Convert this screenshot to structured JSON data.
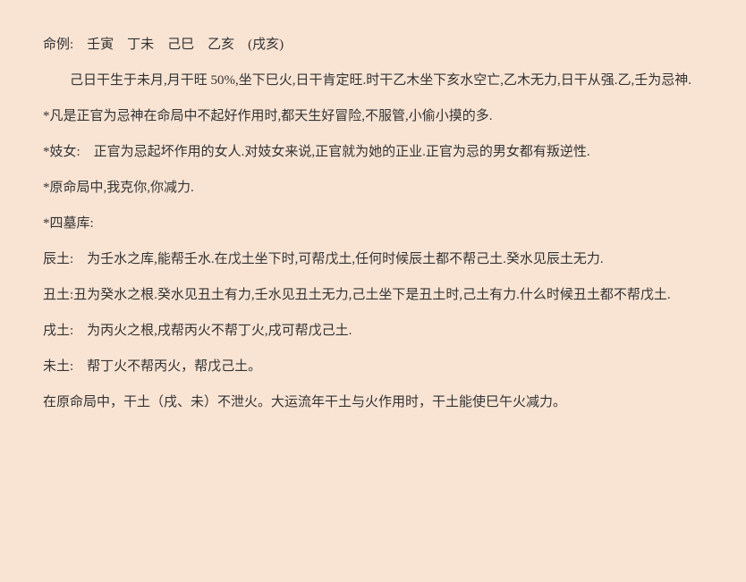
{
  "p1": "命例:　壬寅　丁未　己巳　乙亥　(戌亥)",
  "p2": "己日干生于未月,月干旺 50%,坐下巳火,日干肯定旺.时干乙木坐下亥水空亡,乙木无力,日干从强.乙,壬为忌神.",
  "p3": "*凡是正官为忌神在命局中不起好作用时,都天生好冒险,不服管,小偷小摸的多.",
  "p4": "*妓女:　正官为忌起坏作用的女人.对妓女来说,正官就为她的正业.正官为忌的男女都有叛逆性.",
  "p5": "*原命局中,我克你,你减力.",
  "p6": "*四墓库:",
  "p7": "辰土:　为壬水之库,能帮壬水.在戊土坐下时,可帮戊土,任何时候辰土都不帮己土.癸水见辰土无力.",
  "p8": "丑土:丑为癸水之根.癸水见丑土有力,壬水见丑土无力,己土坐下是丑土时,己土有力.什么时候丑土都不帮戊土.",
  "p9": "戌土:　为丙火之根,戌帮丙火不帮丁火,戌可帮戊己土.",
  "p10": "未土:　帮丁火不帮丙火，帮戊己土。",
  "p11": "在原命局中，干土（戌、未）不泄火。大运流年干土与火作用时，干土能使巳午火减力。"
}
